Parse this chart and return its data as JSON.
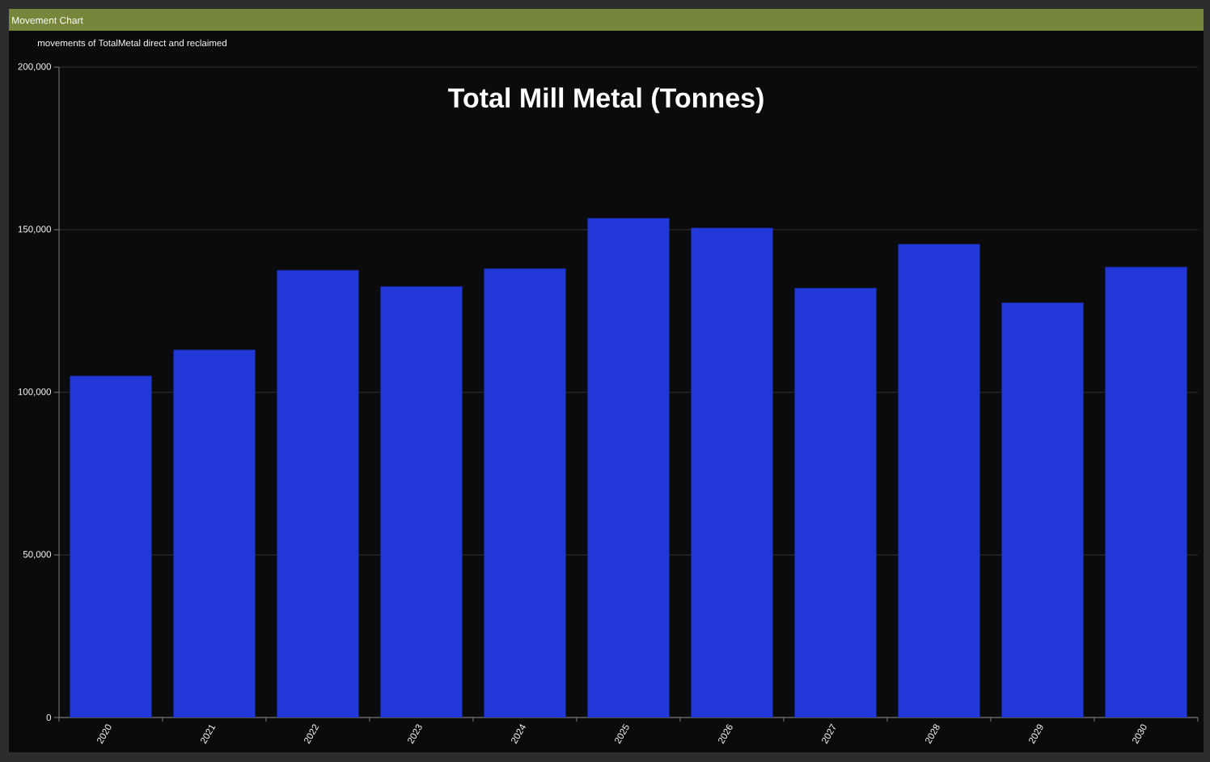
{
  "chart_data": {
    "type": "bar",
    "title": "Total Mill Metal (Tonnes)",
    "annotations": [
      "Movement Chart",
      "movements of TotalMetal direct and reclaimed"
    ],
    "categories": [
      "2020",
      "2021",
      "2022",
      "2023",
      "2024",
      "2025",
      "2026",
      "2027",
      "2028",
      "2029",
      "2030"
    ],
    "values": [
      105000,
      113000,
      137500,
      132500,
      138000,
      153500,
      150500,
      132000,
      145500,
      127500,
      138500
    ],
    "color": "#2238d8",
    "ylim": [
      0,
      200000
    ],
    "yticks": [
      0,
      {
        "value": 50000,
        "label": "50,000"
      },
      {
        "value": 100000,
        "label": "100,000"
      },
      {
        "value": 150000,
        "label": "150,000"
      },
      {
        "value": 200000,
        "label": "200,000"
      }
    ],
    "grid": "y"
  }
}
